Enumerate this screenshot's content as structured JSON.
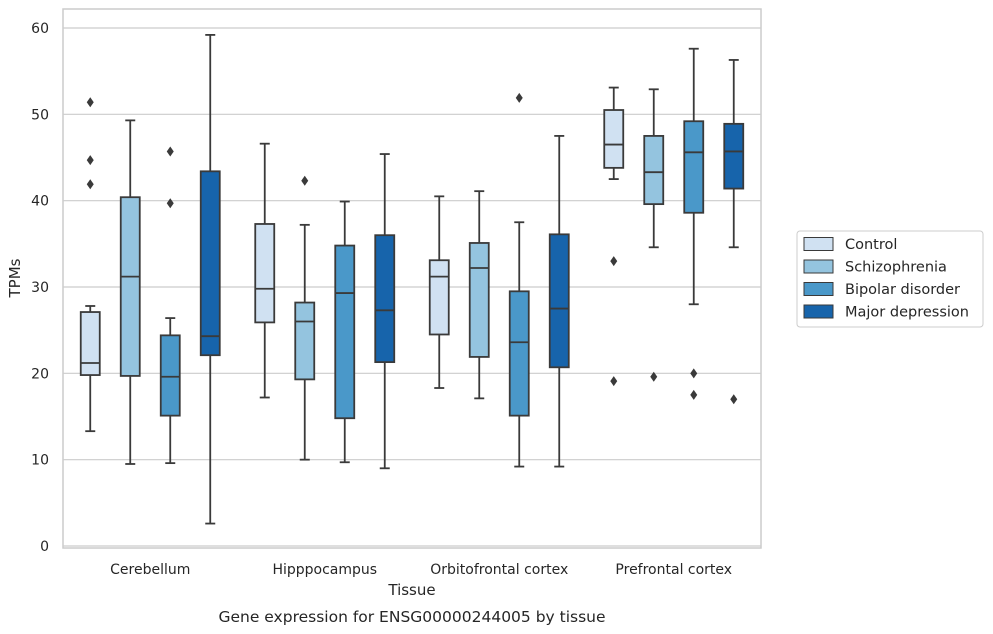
{
  "chart_data": {
    "type": "boxplot",
    "caption": "Gene expression for ENSG00000244005 by tissue",
    "xlabel": "Tissue",
    "ylabel": "TPMs",
    "ylim": [
      0,
      62
    ],
    "yticks": [
      0,
      10,
      20,
      30,
      40,
      50,
      60
    ],
    "grid": "horizontal",
    "legend_position": "right",
    "categories": [
      "Cerebellum",
      "Hipppocampus",
      "Orbitofrontal cortex",
      "Prefrontal cortex"
    ],
    "series": [
      {
        "name": "Control",
        "color": "#d0e1f2",
        "boxes": [
          {
            "whislo": 13.3,
            "q1": 19.8,
            "med": 21.2,
            "q3": 27.1,
            "whishi": 27.8,
            "fliers": [
              41.9,
              44.7,
              51.4
            ]
          },
          {
            "whislo": 17.2,
            "q1": 25.9,
            "med": 29.8,
            "q3": 37.3,
            "whishi": 46.6,
            "fliers": []
          },
          {
            "whislo": 18.3,
            "q1": 24.5,
            "med": 31.2,
            "q3": 33.1,
            "whishi": 40.5,
            "fliers": []
          },
          {
            "whislo": 42.5,
            "q1": 43.8,
            "med": 46.5,
            "q3": 50.5,
            "whishi": 53.1,
            "fliers": [
              33.0,
              19.1
            ]
          }
        ]
      },
      {
        "name": "Schizophrenia",
        "color": "#94c4df",
        "boxes": [
          {
            "whislo": 9.5,
            "q1": 19.7,
            "med": 31.2,
            "q3": 40.4,
            "whishi": 49.3,
            "fliers": []
          },
          {
            "whislo": 10.0,
            "q1": 19.3,
            "med": 26.0,
            "q3": 28.2,
            "whishi": 37.2,
            "fliers": [
              42.3
            ]
          },
          {
            "whislo": 17.1,
            "q1": 21.9,
            "med": 32.2,
            "q3": 35.1,
            "whishi": 41.1,
            "fliers": []
          },
          {
            "whislo": 34.6,
            "q1": 39.6,
            "med": 43.3,
            "q3": 47.5,
            "whishi": 52.9,
            "fliers": [
              19.6
            ]
          }
        ]
      },
      {
        "name": "Bipolar disorder",
        "color": "#4a98c9",
        "boxes": [
          {
            "whislo": 9.6,
            "q1": 15.1,
            "med": 19.6,
            "q3": 24.4,
            "whishi": 26.4,
            "fliers": [
              39.7,
              45.7
            ]
          },
          {
            "whislo": 9.7,
            "q1": 14.8,
            "med": 29.3,
            "q3": 34.8,
            "whishi": 39.9,
            "fliers": []
          },
          {
            "whislo": 9.2,
            "q1": 15.1,
            "med": 23.6,
            "q3": 29.5,
            "whishi": 37.5,
            "fliers": [
              51.9
            ]
          },
          {
            "whislo": 28.0,
            "q1": 38.6,
            "med": 45.6,
            "q3": 49.2,
            "whishi": 57.6,
            "fliers": [
              20.0,
              17.5
            ]
          }
        ]
      },
      {
        "name": "Major depression",
        "color": "#1764ab",
        "boxes": [
          {
            "whislo": 2.6,
            "q1": 22.1,
            "med": 24.3,
            "q3": 43.4,
            "whishi": 59.2,
            "fliers": []
          },
          {
            "whislo": 9.0,
            "q1": 21.3,
            "med": 27.3,
            "q3": 36.0,
            "whishi": 45.4,
            "fliers": []
          },
          {
            "whislo": 9.2,
            "q1": 20.7,
            "med": 27.5,
            "q3": 36.1,
            "whishi": 47.5,
            "fliers": []
          },
          {
            "whislo": 34.6,
            "q1": 41.4,
            "med": 45.7,
            "q3": 48.9,
            "whishi": 56.3,
            "fliers": [
              17.0
            ]
          }
        ]
      }
    ]
  }
}
